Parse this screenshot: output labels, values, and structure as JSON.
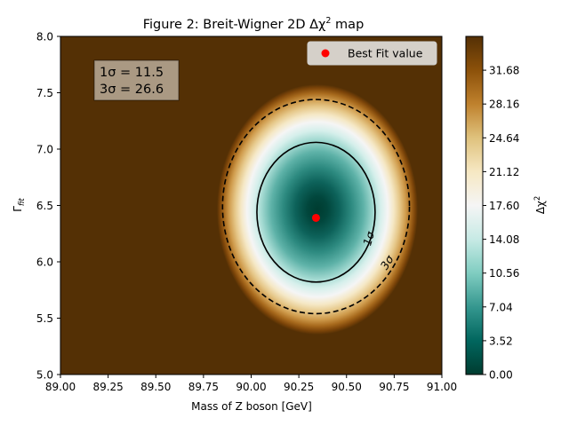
{
  "chart_data": {
    "type": "heatmap",
    "title": "Figure 2: Breit-Wigner 2D Δχ² map",
    "title_parts": {
      "prefix": "Figure 2: Breit-Wigner 2D Δχ",
      "sup": "2",
      "suffix": " map"
    },
    "xlabel": "Mass of Z boson [GeV]",
    "ylabel": "Γ_fit",
    "ylabel_parts": {
      "main": "Γ",
      "sub": "fit"
    },
    "xlim": [
      89.0,
      91.0
    ],
    "ylim": [
      5.0,
      8.0
    ],
    "xticks": [
      "89.00",
      "89.25",
      "89.50",
      "89.75",
      "90.00",
      "90.25",
      "90.50",
      "90.75",
      "91.00"
    ],
    "yticks": [
      "5.0",
      "5.5",
      "6.0",
      "6.5",
      "7.0",
      "7.5",
      "8.0"
    ],
    "colorbar": {
      "label": "Δχ²",
      "label_parts": {
        "main": "Δχ",
        "sup": "2"
      },
      "colormap": "BrBG_r",
      "range": [
        0.0,
        35.2
      ],
      "ticks": [
        "0.00",
        "3.52",
        "7.04",
        "10.56",
        "14.08",
        "17.60",
        "21.12",
        "24.64",
        "28.16",
        "31.68"
      ]
    },
    "best_fit": {
      "x": 90.34,
      "y": 6.39,
      "color": "#ff0000"
    },
    "legend": {
      "entries": [
        "Best Fit value"
      ],
      "placement": "top-right"
    },
    "contours": [
      {
        "label": "1σ",
        "delta_chi2": 11.5,
        "style": "solid",
        "ellipse": {
          "center_x": 90.34,
          "center_y": 6.44,
          "semi_x": 0.31,
          "semi_y": 0.62
        }
      },
      {
        "label": "3σ",
        "delta_chi2": 26.6,
        "style": "dashed",
        "ellipse": {
          "center_x": 90.34,
          "center_y": 6.49,
          "semi_x": 0.49,
          "semi_y": 0.95
        }
      }
    ],
    "annotation": {
      "line1": "1σ = 11.5",
      "line2": "3σ = 26.6"
    },
    "grid": false
  }
}
